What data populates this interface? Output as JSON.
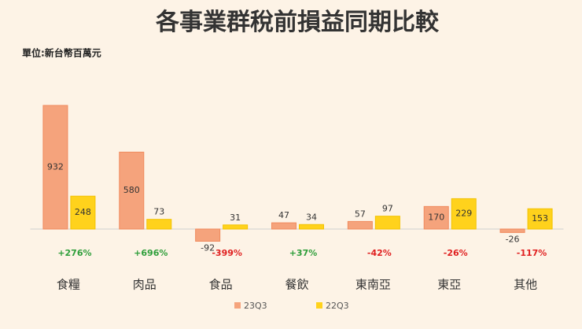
{
  "chart_data": {
    "type": "bar",
    "title": "各事業群稅前損益同期比較",
    "subtitle": "單位:新台幣百萬元",
    "categories": [
      "食糧",
      "肉品",
      "食品",
      "餐飲",
      "東南亞",
      "東亞",
      "其他"
    ],
    "series": [
      {
        "name": "23Q3",
        "color": "#f5a37c",
        "values": [
          932,
          580,
          -92,
          47,
          57,
          170,
          -26
        ]
      },
      {
        "name": "22Q3",
        "color": "#ffd21c",
        "values": [
          248,
          73,
          31,
          34,
          97,
          229,
          153
        ]
      }
    ],
    "annotations": [
      "+276%",
      "+696%",
      "-399%",
      "+37%",
      "-42%",
      "-26%",
      "-117%"
    ],
    "annotation_colors": [
      "#2e9e3a",
      "#2e9e3a",
      "#e02020",
      "#2e9e3a",
      "#e02020",
      "#e02020",
      "#e02020"
    ],
    "ylim": [
      -200,
      1000
    ],
    "grid": false,
    "legend": "bottom"
  }
}
